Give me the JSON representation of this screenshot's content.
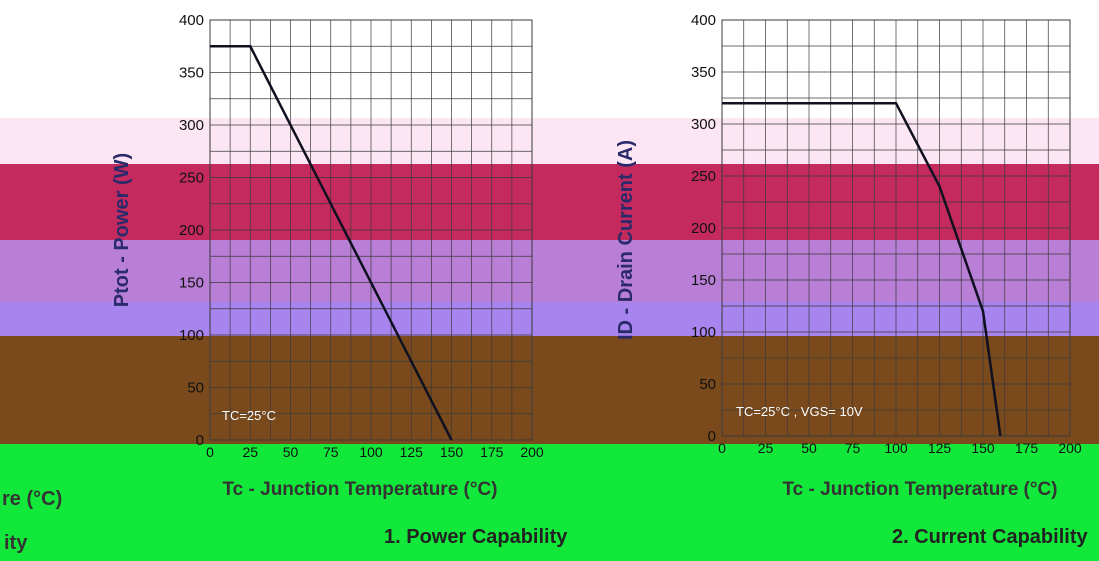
{
  "bands": {
    "top": "#ffffff",
    "pink_light": "#fde6f4",
    "crimson": "#c42a5e",
    "purple": "#b97fd6",
    "violet": "#a784ee",
    "brown": "#7a4a1d",
    "green": "#12e83a"
  },
  "colors": {
    "grid": "#3a3a3a",
    "curve": "#0f1020",
    "axis_label": "#2a2a6a",
    "tick": "#111111"
  },
  "fragments": {
    "left_clip_caption": "ity",
    "left_clip_axis": "re (°C)"
  },
  "chart_data": [
    {
      "type": "line",
      "caption": "1. Power Capability",
      "ylabel": "Ptot - Power (W)",
      "xlabel": "Tc - Junction Temperature (°C)",
      "annotation": "TC=25°C",
      "xlim": [
        0,
        200
      ],
      "ylim": [
        0,
        400
      ],
      "xticks": [
        "0",
        "25",
        "50",
        "75",
        "100",
        "125",
        "150",
        "175",
        "200"
      ],
      "yticks": [
        "0",
        "50",
        "100",
        "150",
        "200",
        "250",
        "300",
        "350",
        "400"
      ],
      "series": [
        {
          "x": [
            0,
            25,
            150
          ],
          "y": [
            375,
            375,
            0
          ]
        }
      ]
    },
    {
      "type": "line",
      "caption": "2. Current Capability",
      "ylabel": "ID - Drain Current (A)",
      "xlabel": "Tc - Junction Temperature (°C)",
      "annotation": "TC=25°C , VGS= 10V",
      "xlim": [
        0,
        200
      ],
      "ylim": [
        0,
        400
      ],
      "xticks": [
        "0",
        "25",
        "50",
        "75",
        "100",
        "125",
        "150",
        "175",
        "200"
      ],
      "yticks": [
        "0",
        "50",
        "100",
        "150",
        "200",
        "250",
        "300",
        "350",
        "400"
      ],
      "series": [
        {
          "x": [
            0,
            100,
            125,
            150,
            160
          ],
          "y": [
            320,
            320,
            240,
            120,
            0
          ]
        }
      ]
    }
  ]
}
